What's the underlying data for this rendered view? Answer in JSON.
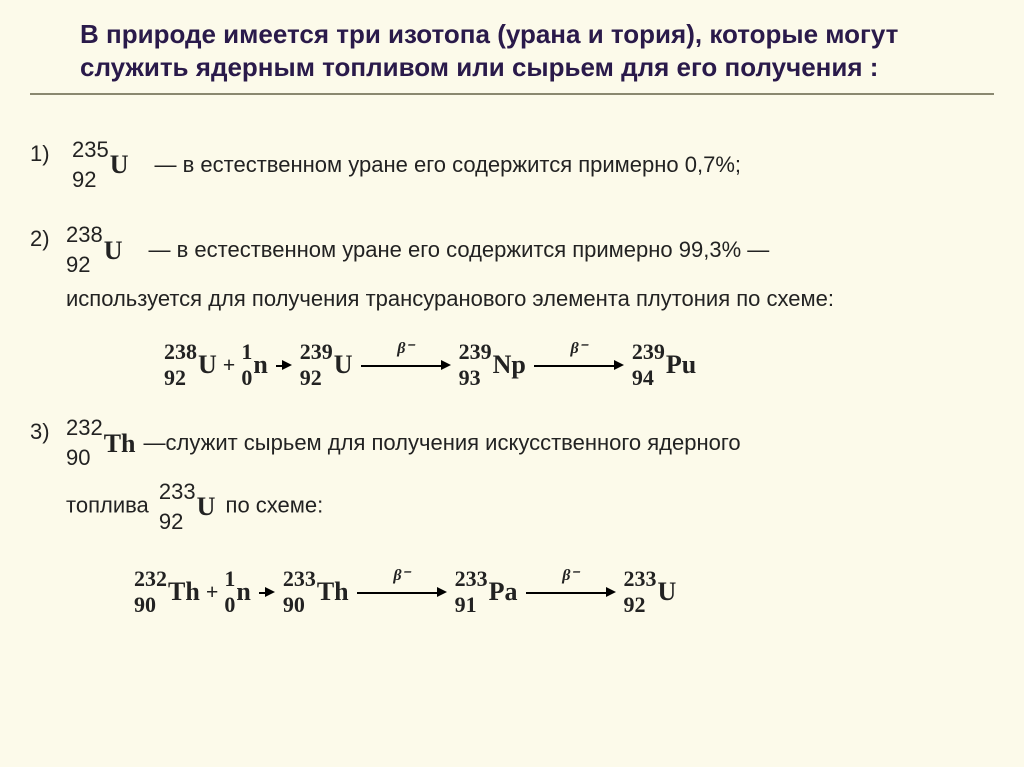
{
  "background_color": "#fcfaea",
  "title_color": "#2a1a4a",
  "underline_color": "#8a8870",
  "title": "В природе имеется три изотопа (урана и тория), которые могут служить ядерным топливом или сырьем для его получения :",
  "items": [
    {
      "num": "1)",
      "nuclide": {
        "A": "235",
        "Z": "92",
        "sym": "U"
      },
      "text": "— в естественном уране его содержится примерно 0,7%;"
    },
    {
      "num": "2)",
      "nuclide": {
        "A": "238",
        "Z": "92",
        "sym": "U"
      },
      "text": "— в естественном уране его содержится примерно 99,3% —",
      "cont": "используется для получения трансуранового элемента плутония по схеме:",
      "scheme": [
        {
          "type": "nuc",
          "A": "238",
          "Z": "92",
          "sym": "U"
        },
        {
          "type": "plus",
          "s": "+"
        },
        {
          "type": "nuc",
          "A": "1",
          "Z": "0",
          "sym": "n"
        },
        {
          "type": "arrow_short"
        },
        {
          "type": "nuc",
          "A": "239",
          "Z": "92",
          "sym": "U"
        },
        {
          "type": "arrow",
          "lbl": "β⁻"
        },
        {
          "type": "nuc",
          "A": "239",
          "Z": "93",
          "sym": "Np"
        },
        {
          "type": "arrow",
          "lbl": "β⁻"
        },
        {
          "type": "nuc",
          "A": "239",
          "Z": "94",
          "sym": "Pu"
        }
      ]
    },
    {
      "num": "3)",
      "nuclide": {
        "A": "232",
        "Z": "90",
        "sym": "Th"
      },
      "text_a": "—служит сырьем для получения искусственного ядерного",
      "cont_pre": "топлива",
      "cont_nuc": {
        "A": "233",
        "Z": "92",
        "sym": "U"
      },
      "cont_post": " по схеме:",
      "scheme": [
        {
          "type": "nuc",
          "A": "232",
          "Z": "90",
          "sym": "Th"
        },
        {
          "type": "plus",
          "s": "+"
        },
        {
          "type": "nuc",
          "A": "1",
          "Z": "0",
          "sym": "n"
        },
        {
          "type": "arrow_short"
        },
        {
          "type": "nuc",
          "A": "233",
          "Z": "90",
          "sym": "Th"
        },
        {
          "type": "arrow",
          "lbl": "β⁻"
        },
        {
          "type": "nuc",
          "A": "233",
          "Z": "91",
          "sym": "Pa"
        },
        {
          "type": "arrow",
          "lbl": "β⁻"
        },
        {
          "type": "nuc",
          "A": "233",
          "Z": "92",
          "sym": "U"
        }
      ]
    }
  ]
}
